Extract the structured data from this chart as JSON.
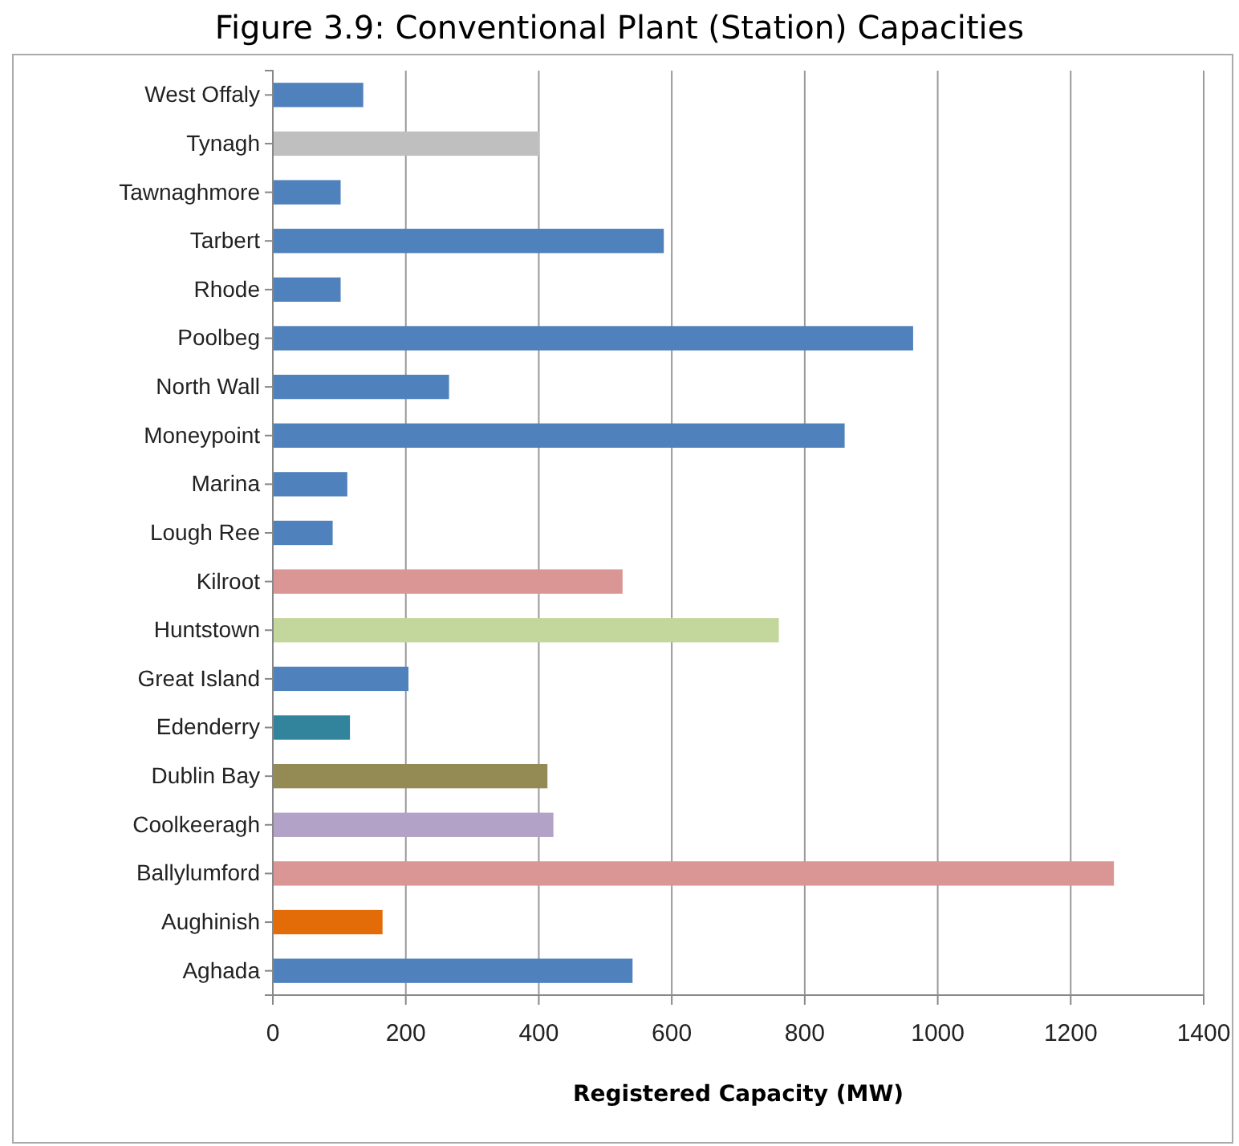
{
  "chart_data": {
    "type": "bar",
    "orientation": "horizontal",
    "title": "Figure 3.9: Conventional Plant (Station) Capacities",
    "xlabel": "Registered Capacity (MW)",
    "categories": [
      "West Offaly",
      "Tynagh",
      "Tawnaghmore",
      "Tarbert",
      "Rhode",
      "Poolbeg",
      "North Wall",
      "Moneypoint",
      "Marina",
      "Lough Ree",
      "Kilroot",
      "Huntstown",
      "Great Island",
      "Edenderry",
      "Dublin Bay",
      "Coolkeeragh",
      "Ballylumford",
      "Aughinish",
      "Aghada"
    ],
    "values": [
      136,
      401,
      102,
      588,
      102,
      963,
      265,
      860,
      112,
      90,
      526,
      761,
      204,
      116,
      413,
      422,
      1265,
      165,
      541
    ],
    "colors": [
      "#4f81bd",
      "#bfbfbf",
      "#4f81bd",
      "#4f81bd",
      "#4f81bd",
      "#4f81bd",
      "#4f81bd",
      "#4f81bd",
      "#4f81bd",
      "#4f81bd",
      "#d99694",
      "#c3d69b",
      "#4f81bd",
      "#31849b",
      "#948a54",
      "#b3a2c7",
      "#d99694",
      "#e36c09",
      "#4f81bd"
    ],
    "xlim": [
      0,
      1400
    ],
    "xticks": [
      0,
      200,
      400,
      600,
      800,
      1000,
      1200,
      1400
    ],
    "grid": "x"
  }
}
